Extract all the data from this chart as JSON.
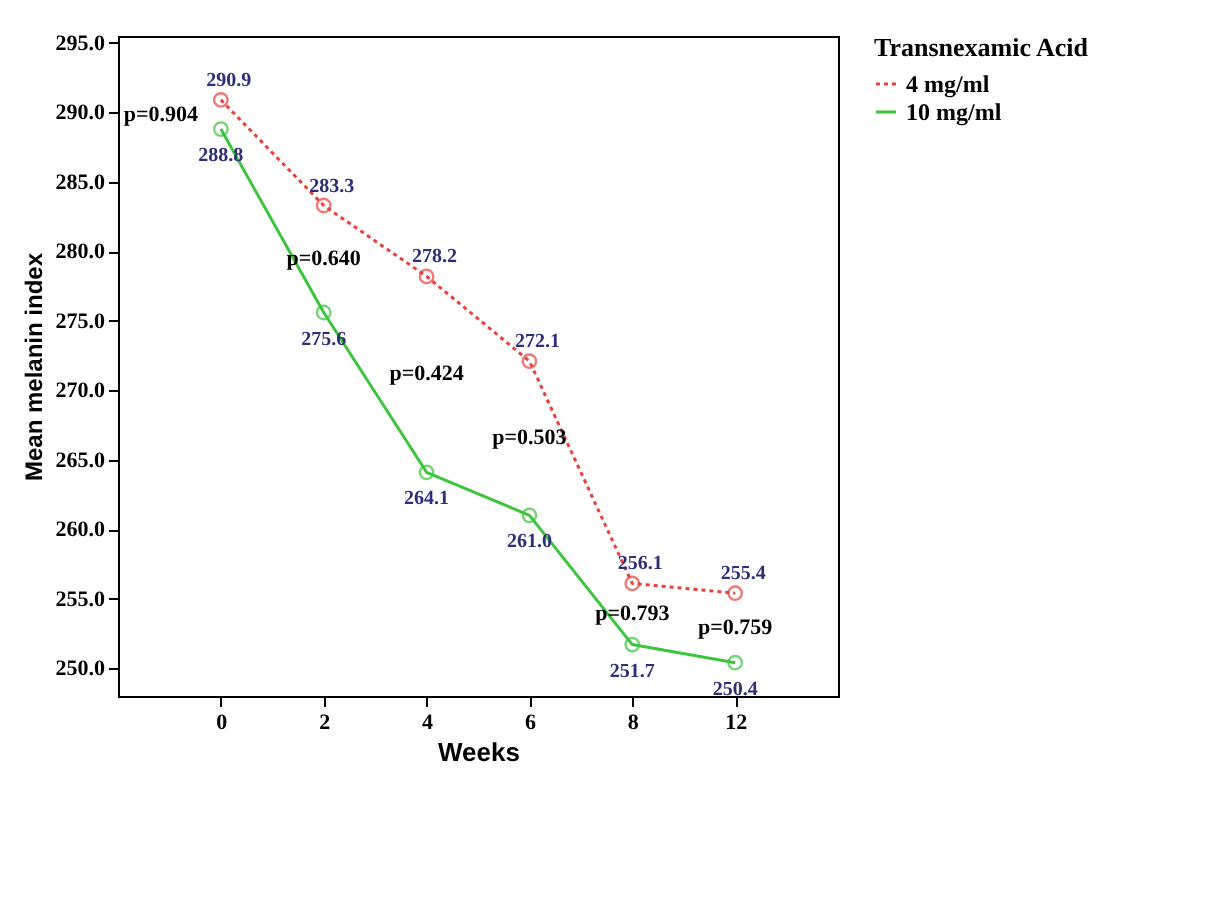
{
  "chart_data": {
    "type": "line",
    "xlabel": "Weeks",
    "ylabel": "Mean melanin index",
    "legend_title": "Transnexamic Acid",
    "legend": "top right",
    "marker": "circle",
    "grid": false,
    "categories": [
      "0",
      "2",
      "4",
      "6",
      "8",
      "12"
    ],
    "ylim": [
      248,
      295.5
    ],
    "yticks": [
      {
        "value": 250,
        "label": "250.0"
      },
      {
        "value": 255,
        "label": "255.0"
      },
      {
        "value": 260,
        "label": "260.0"
      },
      {
        "value": 265,
        "label": "265.0"
      },
      {
        "value": 270,
        "label": "270.0"
      },
      {
        "value": 275,
        "label": "275.0"
      },
      {
        "value": 280,
        "label": "280.0"
      },
      {
        "value": 285,
        "label": "285.0"
      },
      {
        "value": 290,
        "label": "290.0"
      },
      {
        "value": 295,
        "label": "295.0"
      }
    ],
    "series": [
      {
        "name": "4  mg/ml",
        "color": "#e8413c",
        "line_style": "dotted",
        "values": [
          290.9,
          283.3,
          278.2,
          272.1,
          256.1,
          255.4
        ],
        "value_labels": [
          "290.9",
          "283.3",
          "278.2",
          "272.1",
          "256.1",
          "255.4"
        ]
      },
      {
        "name": "10  mg/ml",
        "color": "#3cc43c",
        "line_style": "solid",
        "values": [
          288.8,
          275.6,
          264.1,
          261.0,
          251.7,
          250.4
        ],
        "value_labels": [
          "288.8",
          "275.6",
          "264.1",
          "261.0",
          "251.7",
          "250.4"
        ]
      }
    ],
    "annotations": [
      "p=0.904",
      "p=0.640",
      "p=0.424",
      "p=0.503",
      "p=0.793",
      "p=0.759"
    ]
  }
}
